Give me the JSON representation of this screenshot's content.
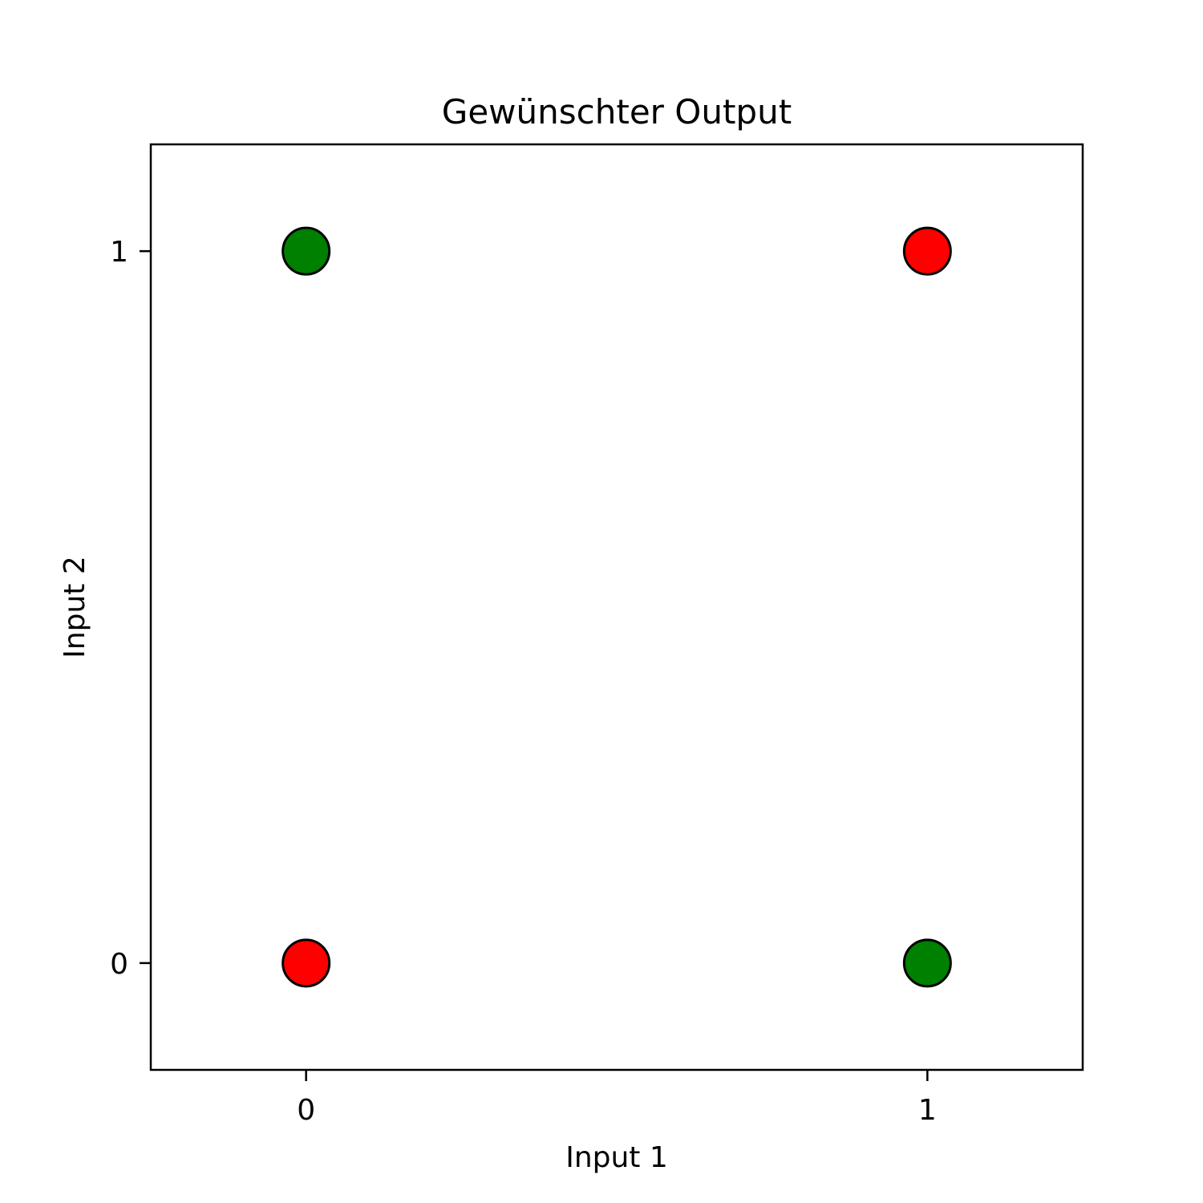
{
  "chart_data": {
    "type": "scatter",
    "title": "Gewünschter Output",
    "xlabel": "Input 1",
    "ylabel": "Input 2",
    "xlim": [
      -0.25,
      1.25
    ],
    "ylim": [
      -0.15,
      1.15
    ],
    "xticks": [
      0,
      1
    ],
    "yticks": [
      0,
      1
    ],
    "xtick_labels": [
      "0",
      "1"
    ],
    "ytick_labels": [
      "0",
      "1"
    ],
    "grid": false,
    "points": [
      {
        "x": 0,
        "y": 0,
        "color": "#ff0000"
      },
      {
        "x": 0,
        "y": 1,
        "color": "#008000"
      },
      {
        "x": 1,
        "y": 0,
        "color": "#008000"
      },
      {
        "x": 1,
        "y": 1,
        "color": "#ff0000"
      }
    ],
    "marker_edge_color": "#000000"
  }
}
